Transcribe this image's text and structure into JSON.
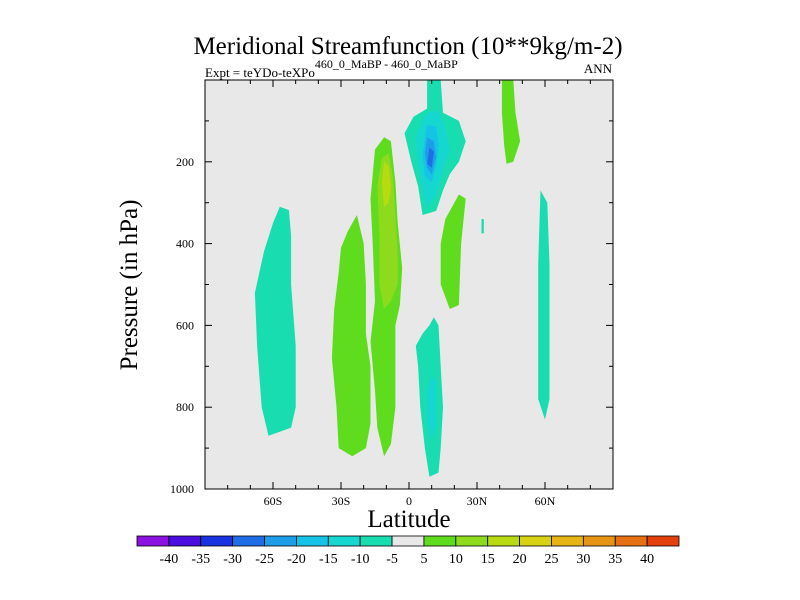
{
  "chart_data": {
    "type": "heatmap",
    "title": "Meridional Streamfunction (10**9kg/m-2)",
    "subtitle_left_prefix": "Expt = teYDo-teXPo",
    "subtitle_left_superscript": "460_0_MaBP - 460_0_MaBP",
    "subtitle_right": "ANN",
    "xlabel": "Latitude",
    "ylabel": "Pressure (in hPa)",
    "xlim": [
      -90,
      90
    ],
    "ylim": [
      1000,
      0
    ],
    "x_ticks": [
      {
        "value": -60,
        "label": "60S"
      },
      {
        "value": -30,
        "label": "30S"
      },
      {
        "value": 0,
        "label": "0"
      },
      {
        "value": 30,
        "label": "30N"
      },
      {
        "value": 60,
        "label": "60N"
      }
    ],
    "y_ticks": [
      {
        "value": 200,
        "label": "200"
      },
      {
        "value": 400,
        "label": "400"
      },
      {
        "value": 600,
        "label": "600"
      },
      {
        "value": 800,
        "label": "800"
      },
      {
        "value": 1000,
        "label": "1000"
      }
    ],
    "y_minor_step": 100,
    "x_minor_step": 10,
    "background_color": "#e8e8e8",
    "colorbar": {
      "levels": [
        -40,
        -35,
        -30,
        -25,
        -20,
        -15,
        -10,
        -5,
        5,
        10,
        15,
        20,
        25,
        30,
        35,
        40
      ],
      "colors": [
        "#8b12e0",
        "#4a0ee0",
        "#1933e0",
        "#1f6ee6",
        "#1f9ee8",
        "#14c3e6",
        "#16d6d0",
        "#17ddb0",
        "#e8e8e8",
        "#5fdc1e",
        "#8edb1e",
        "#b7db10",
        "#d8d214",
        "#e6b414",
        "#e69414",
        "#e67014",
        "#e4400e"
      ]
    },
    "regions": [
      {
        "name": "sh-polar-cell-negative",
        "value_range": [
          -10,
          -5
        ],
        "color": "#17ddb0",
        "points": [
          [
            -57,
            310
          ],
          [
            -53,
            318
          ],
          [
            -52,
            380
          ],
          [
            -52,
            500
          ],
          [
            -50,
            650
          ],
          [
            -50,
            800
          ],
          [
            -52,
            850
          ],
          [
            -57,
            860
          ],
          [
            -62,
            870
          ],
          [
            -65,
            800
          ],
          [
            -67,
            650
          ],
          [
            -68,
            520
          ],
          [
            -64,
            420
          ],
          [
            -60,
            350
          ]
        ]
      },
      {
        "name": "sh-midlatitude-positive",
        "value_range": [
          5,
          10
        ],
        "color": "#5fdc1e",
        "points": [
          [
            -30,
            410
          ],
          [
            -27,
            370
          ],
          [
            -23,
            330
          ],
          [
            -20,
            400
          ],
          [
            -19,
            500
          ],
          [
            -19,
            620
          ],
          [
            -17,
            700
          ],
          [
            -17,
            840
          ],
          [
            -19,
            900
          ],
          [
            -25,
            920
          ],
          [
            -31,
            900
          ],
          [
            -32,
            800
          ],
          [
            -34,
            680
          ],
          [
            -33,
            560
          ],
          [
            -31,
            470
          ]
        ]
      },
      {
        "name": "tropical-upper-positive-outer",
        "value_range": [
          5,
          10
        ],
        "color": "#5fdc1e",
        "points": [
          [
            -15,
            170
          ],
          [
            -11,
            140
          ],
          [
            -8,
            150
          ],
          [
            -6,
            250
          ],
          [
            -5,
            350
          ],
          [
            -3,
            460
          ],
          [
            -4,
            550
          ],
          [
            -6,
            600
          ],
          [
            -6,
            700
          ],
          [
            -6,
            800
          ],
          [
            -8,
            890
          ],
          [
            -11,
            920
          ],
          [
            -14,
            850
          ],
          [
            -15,
            760
          ],
          [
            -17,
            640
          ],
          [
            -15,
            540
          ],
          [
            -16,
            400
          ],
          [
            -17,
            290
          ]
        ]
      },
      {
        "name": "tropical-upper-positive-inner",
        "value_range": [
          10,
          15
        ],
        "color": "#8edb1e",
        "points": [
          [
            -12,
            190
          ],
          [
            -9,
            180
          ],
          [
            -7,
            240
          ],
          [
            -6,
            330
          ],
          [
            -5,
            430
          ],
          [
            -5,
            500
          ],
          [
            -8,
            540
          ],
          [
            -11,
            560
          ],
          [
            -13,
            500
          ],
          [
            -13,
            380
          ],
          [
            -14,
            260
          ]
        ]
      },
      {
        "name": "tropical-upper-positive-core",
        "value_range": [
          15,
          20
        ],
        "color": "#b7db10",
        "points": [
          [
            -11,
            200
          ],
          [
            -9,
            210
          ],
          [
            -8,
            260
          ],
          [
            -9,
            300
          ],
          [
            -11,
            310
          ],
          [
            -12,
            250
          ]
        ]
      },
      {
        "name": "nh-tropical-upper-negative-outer",
        "value_range": [
          -10,
          -5
        ],
        "color": "#17ddb0",
        "points": [
          [
            8,
            0
          ],
          [
            14,
            0
          ],
          [
            15,
            80
          ],
          [
            22,
            100
          ],
          [
            25,
            150
          ],
          [
            22,
            200
          ],
          [
            18,
            230
          ],
          [
            15,
            270
          ],
          [
            12,
            320
          ],
          [
            6,
            330
          ],
          [
            4,
            260
          ],
          [
            1,
            200
          ],
          [
            -2,
            130
          ],
          [
            2,
            90
          ],
          [
            8,
            70
          ]
        ]
      },
      {
        "name": "nh-tropical-upper-negative-mid",
        "value_range": [
          -15,
          -10
        ],
        "color": "#16d6d0",
        "points": [
          [
            8,
            80
          ],
          [
            13,
            75
          ],
          [
            16,
            120
          ],
          [
            18,
            170
          ],
          [
            15,
            220
          ],
          [
            12,
            280
          ],
          [
            8,
            310
          ],
          [
            6,
            270
          ],
          [
            4,
            200
          ],
          [
            3,
            140
          ],
          [
            5,
            110
          ]
        ]
      },
      {
        "name": "nh-tropical-upper-negative-inner1",
        "value_range": [
          -20,
          -15
        ],
        "color": "#14c3e6",
        "points": [
          [
            8,
            110
          ],
          [
            12,
            115
          ],
          [
            13,
            160
          ],
          [
            12,
            210
          ],
          [
            10,
            250
          ],
          [
            7,
            235
          ],
          [
            6,
            180
          ]
        ]
      },
      {
        "name": "nh-tropical-upper-negative-inner2",
        "value_range": [
          -25,
          -20
        ],
        "color": "#1f9ee8",
        "points": [
          [
            8,
            140
          ],
          [
            11,
            150
          ],
          [
            12,
            190
          ],
          [
            10,
            230
          ],
          [
            8,
            215
          ],
          [
            7,
            180
          ]
        ]
      },
      {
        "name": "nh-tropical-upper-negative-core",
        "value_range": [
          -30,
          -25
        ],
        "color": "#1f6ee6",
        "points": [
          [
            9,
            165
          ],
          [
            11,
            175
          ],
          [
            10,
            215
          ],
          [
            8,
            205
          ]
        ]
      },
      {
        "name": "nh-tropical-lower-negative",
        "value_range": [
          -10,
          -5
        ],
        "color": "#17ddb0",
        "points": [
          [
            11,
            580
          ],
          [
            13,
            600
          ],
          [
            14,
            700
          ],
          [
            15,
            800
          ],
          [
            14,
            900
          ],
          [
            13,
            960
          ],
          [
            9,
            970
          ],
          [
            7,
            900
          ],
          [
            5,
            800
          ],
          [
            4,
            700
          ],
          [
            3,
            650
          ],
          [
            6,
            620
          ],
          [
            9,
            600
          ]
        ]
      },
      {
        "name": "nh-tropical-lower-negative-inner",
        "value_range": [
          -15,
          -10
        ],
        "color": "#16d6d0",
        "points": [
          [
            10,
            720
          ],
          [
            12,
            740
          ],
          [
            12,
            850
          ],
          [
            10,
            880
          ],
          [
            8,
            840
          ],
          [
            8,
            760
          ]
        ]
      },
      {
        "name": "nh-subtropical-positive",
        "value_range": [
          5,
          10
        ],
        "color": "#5fdc1e",
        "points": [
          [
            22,
            280
          ],
          [
            25,
            290
          ],
          [
            23,
            400
          ],
          [
            22,
            550
          ],
          [
            18,
            560
          ],
          [
            14,
            500
          ],
          [
            14,
            400
          ],
          [
            16,
            340
          ]
        ]
      },
      {
        "name": "nh-upper-positive-jet",
        "value_range": [
          5,
          10
        ],
        "color": "#5fdc1e",
        "points": [
          [
            41,
            0
          ],
          [
            46,
            0
          ],
          [
            47,
            80
          ],
          [
            49,
            150
          ],
          [
            46,
            200
          ],
          [
            43,
            205
          ],
          [
            42,
            160
          ],
          [
            41,
            80
          ]
        ]
      },
      {
        "name": "nh-ferrel-negative",
        "value_range": [
          -10,
          -5
        ],
        "color": "#17ddb0",
        "points": [
          [
            58,
            270
          ],
          [
            61,
            300
          ],
          [
            62,
            450
          ],
          [
            62,
            600
          ],
          [
            62,
            780
          ],
          [
            60,
            830
          ],
          [
            57,
            780
          ],
          [
            57,
            600
          ],
          [
            57,
            450
          ]
        ]
      },
      {
        "name": "nh-small-negative-speck",
        "value_range": [
          -10,
          -5
        ],
        "color": "#17ddb0",
        "points": [
          [
            32,
            340
          ],
          [
            33,
            340
          ],
          [
            33,
            375
          ],
          [
            32,
            375
          ]
        ]
      }
    ]
  }
}
